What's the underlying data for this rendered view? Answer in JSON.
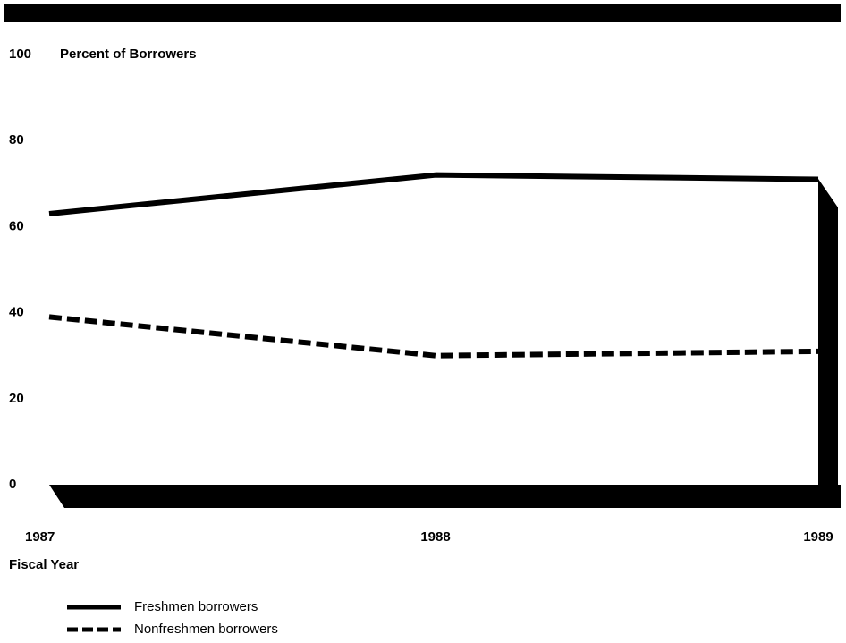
{
  "chart_data": {
    "type": "line",
    "y_label": "Percent of Borrowers",
    "x_label": "Fiscal Year",
    "categories": [
      "1987",
      "1988",
      "1989"
    ],
    "series": [
      {
        "name": "Freshmen borrowers",
        "color": "#000000",
        "dash": "solid",
        "values": [
          63,
          72,
          71
        ]
      },
      {
        "name": "Nonfreshmen borrowers",
        "color": "#000000",
        "dash": "dashed",
        "values": [
          39,
          30,
          31
        ]
      }
    ],
    "ylim": [
      0,
      100
    ],
    "yticks": [
      0,
      20,
      40,
      60,
      80,
      100
    ],
    "grid": false
  }
}
